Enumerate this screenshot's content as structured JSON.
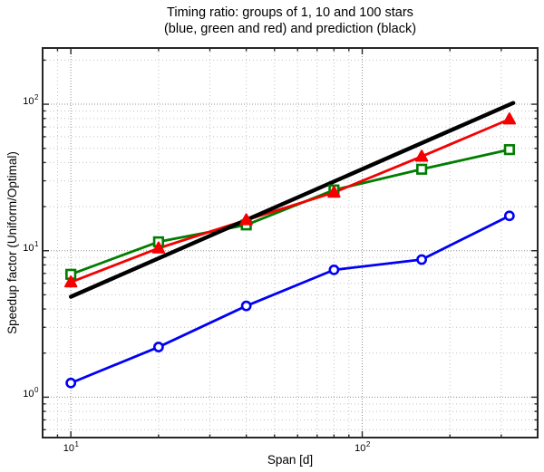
{
  "title": {
    "line1": "Timing ratio: groups of 1, 10 and 100 stars",
    "line2": "(blue, green and red) and prediction (black)"
  },
  "chart_data": {
    "type": "line",
    "title": "Timing ratio: groups of 1, 10 and 100 stars (blue, green and red) and prediction (black)",
    "xlabel": "Span [d]",
    "ylabel": "Speedup factor (Uniform/Optimal)",
    "x_scale": "log",
    "y_scale": "log",
    "xlim": [
      8,
      400
    ],
    "ylim": [
      0.53,
      242
    ],
    "grid": "major-and-minor-dotted",
    "legend_position": "none",
    "x_ticks": [
      {
        "v": 10,
        "base": "10",
        "exp": "1"
      },
      {
        "v": 100,
        "base": "10",
        "exp": "2"
      }
    ],
    "y_ticks": [
      {
        "v": 1,
        "base": "10",
        "exp": "0"
      },
      {
        "v": 10,
        "base": "10",
        "exp": "1"
      },
      {
        "v": 100,
        "base": "10",
        "exp": "2"
      }
    ],
    "series": [
      {
        "name": "group-of-1-star",
        "color": "#0000f5",
        "marker": "circle",
        "line_width": 2.8,
        "x": [
          10,
          20,
          40,
          80,
          160,
          320
        ],
        "y": [
          1.25,
          2.2,
          4.2,
          7.4,
          8.7,
          17.3
        ]
      },
      {
        "name": "group-of-10-stars",
        "color": "#007d00",
        "marker": "square",
        "line_width": 2.8,
        "x": [
          10,
          20,
          40,
          80,
          160,
          320
        ],
        "y": [
          6.9,
          11.5,
          15.0,
          26,
          36,
          49
        ]
      },
      {
        "name": "group-of-100-stars",
        "color": "#f40000",
        "marker": "triangle",
        "line_width": 2.8,
        "x": [
          10,
          20,
          40,
          80,
          160,
          320
        ],
        "y": [
          6.1,
          10.4,
          16.2,
          25,
          44,
          79
        ]
      },
      {
        "name": "prediction",
        "color": "#000000",
        "marker": "none",
        "line_width": 4.4,
        "x": [
          10,
          330
        ],
        "y": [
          4.85,
          102
        ]
      }
    ],
    "colors": {
      "axis_box": "#262626",
      "major_grid": "#8f8f8f",
      "minor_grid": "#c3c3c3",
      "background": "#ffffff"
    }
  }
}
